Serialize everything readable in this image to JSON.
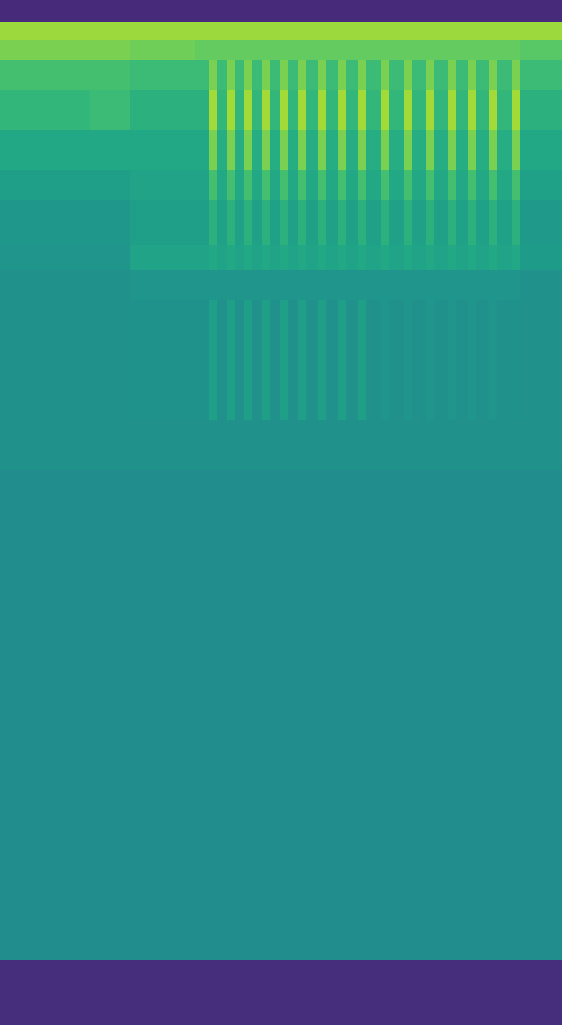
{
  "chart_data": {
    "type": "heatmap",
    "tick_labels": false,
    "x_edges": [
      0,
      90,
      130,
      195,
      209,
      217,
      227,
      235,
      244,
      252,
      262,
      270,
      280,
      288,
      298,
      306,
      318,
      326,
      338,
      346,
      358,
      366,
      381,
      389,
      404,
      412,
      426,
      434,
      448,
      456,
      468,
      476,
      489,
      497,
      512,
      520,
      562
    ],
    "y_edges": [
      0,
      22,
      40,
      60,
      90,
      130,
      170,
      200,
      245,
      270,
      300,
      420,
      470,
      960,
      1025
    ],
    "value_range": [
      0,
      1
    ],
    "cells": [
      [
        0.12,
        0.12,
        0.12,
        0.12,
        0.12,
        0.12,
        0.12,
        0.12,
        0.12,
        0.12,
        0.12,
        0.12,
        0.12,
        0.12,
        0.12,
        0.12,
        0.12,
        0.12,
        0.12,
        0.12,
        0.12,
        0.12,
        0.12,
        0.12,
        0.12,
        0.12,
        0.12,
        0.12,
        0.12,
        0.12,
        0.12,
        0.12,
        0.12,
        0.12,
        0.12,
        0.12
      ],
      [
        0.85,
        0.85,
        0.85,
        0.85,
        0.85,
        0.85,
        0.85,
        0.85,
        0.85,
        0.85,
        0.85,
        0.85,
        0.85,
        0.85,
        0.85,
        0.85,
        0.85,
        0.85,
        0.85,
        0.85,
        0.85,
        0.85,
        0.85,
        0.85,
        0.85,
        0.85,
        0.85,
        0.85,
        0.85,
        0.85,
        0.85,
        0.85,
        0.85,
        0.85,
        0.85,
        0.85
      ],
      [
        0.8,
        0.8,
        0.78,
        0.76,
        0.76,
        0.76,
        0.76,
        0.76,
        0.76,
        0.76,
        0.76,
        0.76,
        0.76,
        0.76,
        0.76,
        0.76,
        0.76,
        0.76,
        0.76,
        0.76,
        0.76,
        0.76,
        0.76,
        0.76,
        0.76,
        0.76,
        0.76,
        0.76,
        0.76,
        0.76,
        0.76,
        0.76,
        0.76,
        0.76,
        0.76,
        0.74
      ],
      [
        0.7,
        0.7,
        0.68,
        0.68,
        0.8,
        0.68,
        0.8,
        0.68,
        0.8,
        0.68,
        0.8,
        0.68,
        0.8,
        0.68,
        0.8,
        0.68,
        0.8,
        0.68,
        0.8,
        0.68,
        0.8,
        0.68,
        0.8,
        0.68,
        0.8,
        0.68,
        0.8,
        0.68,
        0.8,
        0.68,
        0.8,
        0.68,
        0.8,
        0.68,
        0.8,
        0.68
      ],
      [
        0.66,
        0.68,
        0.64,
        0.64,
        0.86,
        0.66,
        0.86,
        0.66,
        0.86,
        0.66,
        0.86,
        0.66,
        0.86,
        0.66,
        0.86,
        0.66,
        0.86,
        0.66,
        0.86,
        0.66,
        0.86,
        0.66,
        0.86,
        0.66,
        0.86,
        0.66,
        0.86,
        0.66,
        0.86,
        0.66,
        0.86,
        0.66,
        0.86,
        0.66,
        0.86,
        0.64
      ],
      [
        0.6,
        0.6,
        0.6,
        0.6,
        0.8,
        0.62,
        0.8,
        0.62,
        0.8,
        0.62,
        0.8,
        0.62,
        0.8,
        0.62,
        0.8,
        0.62,
        0.8,
        0.62,
        0.8,
        0.62,
        0.8,
        0.62,
        0.8,
        0.62,
        0.8,
        0.62,
        0.8,
        0.62,
        0.8,
        0.62,
        0.8,
        0.62,
        0.8,
        0.62,
        0.8,
        0.6
      ],
      [
        0.56,
        0.56,
        0.58,
        0.58,
        0.7,
        0.6,
        0.7,
        0.6,
        0.7,
        0.6,
        0.7,
        0.6,
        0.7,
        0.6,
        0.7,
        0.6,
        0.7,
        0.6,
        0.7,
        0.6,
        0.7,
        0.6,
        0.7,
        0.6,
        0.7,
        0.6,
        0.7,
        0.6,
        0.7,
        0.6,
        0.7,
        0.6,
        0.7,
        0.6,
        0.7,
        0.57
      ],
      [
        0.53,
        0.53,
        0.56,
        0.56,
        0.64,
        0.57,
        0.64,
        0.57,
        0.64,
        0.57,
        0.64,
        0.57,
        0.64,
        0.57,
        0.64,
        0.57,
        0.64,
        0.57,
        0.64,
        0.57,
        0.64,
        0.57,
        0.64,
        0.57,
        0.64,
        0.57,
        0.64,
        0.57,
        0.64,
        0.57,
        0.64,
        0.57,
        0.64,
        0.57,
        0.64,
        0.54
      ],
      [
        0.52,
        0.52,
        0.58,
        0.58,
        0.6,
        0.58,
        0.6,
        0.58,
        0.6,
        0.58,
        0.6,
        0.58,
        0.6,
        0.58,
        0.6,
        0.58,
        0.6,
        0.58,
        0.6,
        0.58,
        0.6,
        0.58,
        0.6,
        0.58,
        0.6,
        0.58,
        0.6,
        0.58,
        0.6,
        0.58,
        0.6,
        0.58,
        0.6,
        0.58,
        0.6,
        0.55
      ],
      [
        0.5,
        0.5,
        0.52,
        0.52,
        0.52,
        0.52,
        0.52,
        0.52,
        0.52,
        0.52,
        0.52,
        0.52,
        0.52,
        0.52,
        0.52,
        0.52,
        0.52,
        0.52,
        0.52,
        0.52,
        0.52,
        0.52,
        0.52,
        0.52,
        0.52,
        0.52,
        0.52,
        0.52,
        0.52,
        0.52,
        0.52,
        0.52,
        0.52,
        0.52,
        0.52,
        0.5
      ],
      [
        0.5,
        0.5,
        0.51,
        0.51,
        0.56,
        0.5,
        0.56,
        0.5,
        0.56,
        0.5,
        0.56,
        0.5,
        0.56,
        0.5,
        0.56,
        0.5,
        0.56,
        0.5,
        0.56,
        0.5,
        0.56,
        0.5,
        0.52,
        0.5,
        0.52,
        0.5,
        0.52,
        0.5,
        0.52,
        0.5,
        0.52,
        0.5,
        0.52,
        0.5,
        0.51,
        0.5
      ],
      [
        0.5,
        0.5,
        0.5,
        0.5,
        0.5,
        0.5,
        0.5,
        0.5,
        0.5,
        0.5,
        0.5,
        0.5,
        0.5,
        0.5,
        0.5,
        0.5,
        0.5,
        0.5,
        0.5,
        0.5,
        0.5,
        0.5,
        0.5,
        0.5,
        0.5,
        0.5,
        0.5,
        0.5,
        0.5,
        0.5,
        0.5,
        0.5,
        0.5,
        0.5,
        0.5,
        0.5
      ],
      [
        0.49,
        0.49,
        0.49,
        0.49,
        0.49,
        0.49,
        0.49,
        0.49,
        0.49,
        0.49,
        0.49,
        0.49,
        0.49,
        0.49,
        0.49,
        0.49,
        0.49,
        0.49,
        0.49,
        0.49,
        0.49,
        0.49,
        0.49,
        0.49,
        0.49,
        0.49,
        0.49,
        0.49,
        0.49,
        0.49,
        0.49,
        0.49,
        0.49,
        0.49,
        0.49,
        0.49
      ],
      [
        0.13,
        0.13,
        0.13,
        0.13,
        0.13,
        0.13,
        0.13,
        0.13,
        0.13,
        0.13,
        0.13,
        0.13,
        0.13,
        0.13,
        0.13,
        0.13,
        0.13,
        0.13,
        0.13,
        0.13,
        0.13,
        0.13,
        0.13,
        0.13,
        0.13,
        0.13,
        0.13,
        0.13,
        0.13,
        0.13,
        0.13,
        0.13,
        0.13,
        0.13,
        0.13,
        0.13
      ]
    ]
  }
}
